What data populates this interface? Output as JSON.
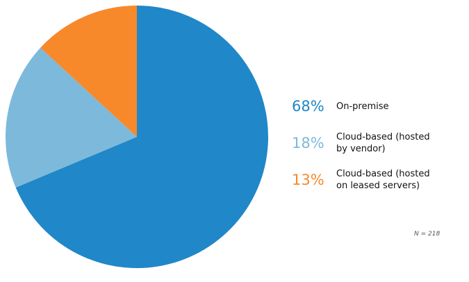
{
  "chart_data": {
    "type": "pie",
    "categories": [
      "On-premise",
      "Cloud-based (hosted by vendor)",
      "Cloud-based (hosted on leased servers)"
    ],
    "values": [
      68,
      18,
      13
    ],
    "value_labels": [
      "68%",
      "18%",
      "13%"
    ],
    "colors": [
      "#2087c8",
      "#7db9db",
      "#f7892b"
    ],
    "note": "N = 218"
  }
}
